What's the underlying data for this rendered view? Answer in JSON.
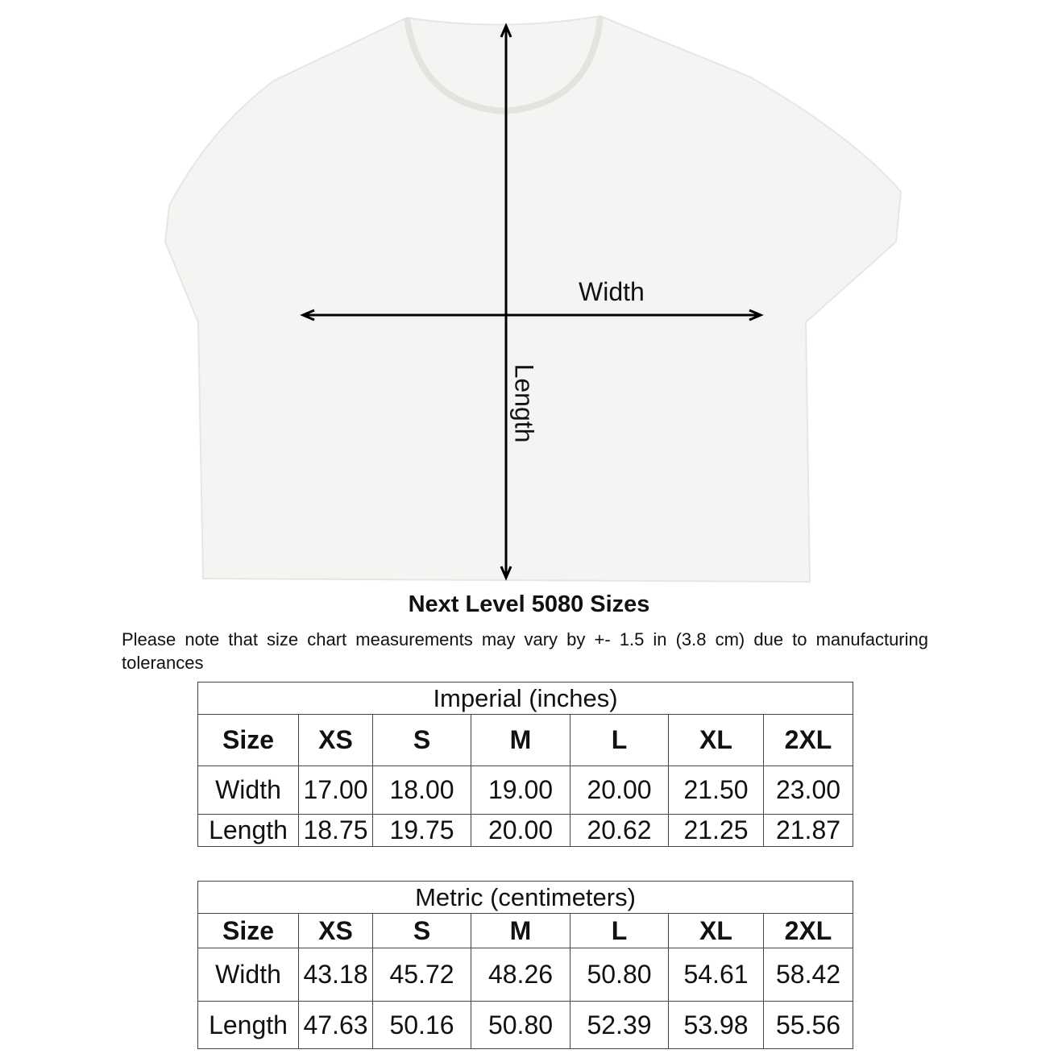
{
  "diagram": {
    "width_label": "Width",
    "length_label": "Length",
    "garment_color": "#f4f4f2"
  },
  "title": "Next Level 5080 Sizes",
  "note": "Please note that size chart measurements may vary by +- 1.5 in (3.8 cm) due to manufacturing tolerances",
  "tables": [
    {
      "caption": "Imperial (inches)",
      "headers": [
        "Size",
        "XS",
        "S",
        "M",
        "L",
        "XL",
        "2XL"
      ],
      "rows": [
        [
          "Width",
          "17.00",
          "18.00",
          "19.00",
          "20.00",
          "21.50",
          "23.00"
        ],
        [
          "Length",
          "18.75",
          "19.75",
          "20.00",
          "20.62",
          "21.25",
          "21.87"
        ]
      ]
    },
    {
      "caption": "Metric (centimeters)",
      "headers": [
        "Size",
        "XS",
        "S",
        "M",
        "L",
        "XL",
        "2XL"
      ],
      "rows": [
        [
          "Width",
          "43.18",
          "45.72",
          "48.26",
          "50.80",
          "54.61",
          "58.42"
        ],
        [
          "Length",
          "47.63",
          "50.16",
          "50.80",
          "52.39",
          "53.98",
          "55.56"
        ]
      ]
    }
  ]
}
